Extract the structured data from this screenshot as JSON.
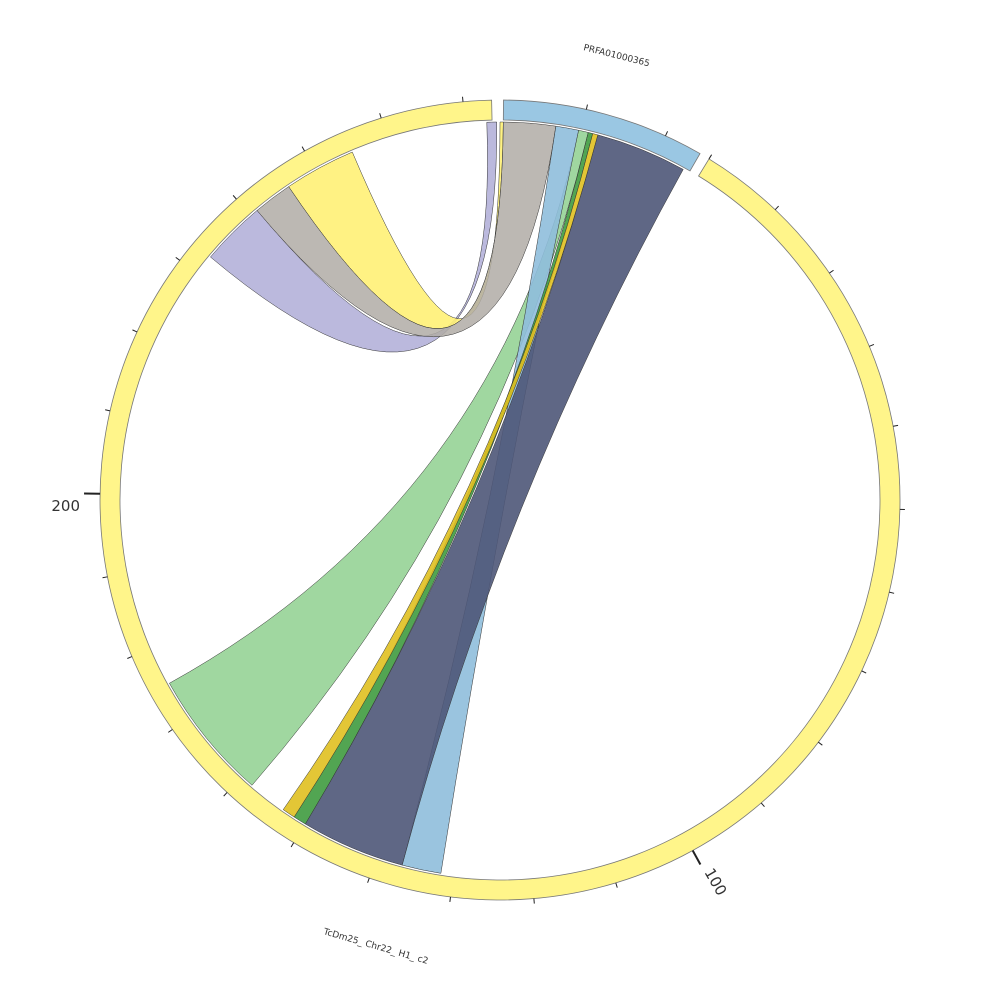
{
  "segments": [
    {
      "label": "PRFA01000365"
    },
    {
      "label": "TcDm25_ Chr22_ H1_ c2"
    }
  ],
  "ticks": [
    {
      "label": "100"
    },
    {
      "label": "200"
    }
  ]
}
